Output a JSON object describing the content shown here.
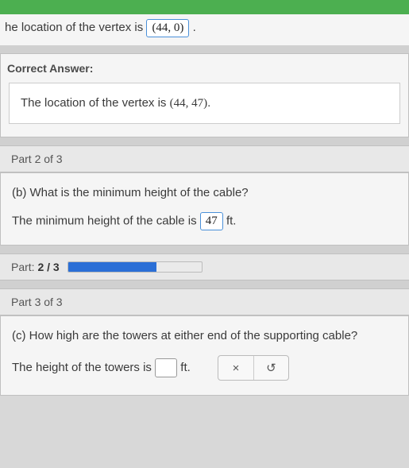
{
  "topbar": {
    "breadcrumb": ""
  },
  "part1": {
    "prefix": "he location of the vertex is",
    "user_answer": "(44, 0)",
    "suffix": ".",
    "correct_label": "Correct Answer:",
    "correct_text": "The location of the vertex is ",
    "correct_value": "(44, 47)",
    "correct_suffix": "."
  },
  "part2": {
    "header": "Part 2 of 3",
    "question": "(b) What is the minimum height of the cable?",
    "answer_prefix": "The minimum height of the cable is",
    "answer_value": "47",
    "answer_unit": "ft."
  },
  "progress": {
    "label_prefix": "Part:",
    "label_value": "2 / 3",
    "percent": 66,
    "fill_color": "#2b6fd6",
    "track_color": "#eaeaea"
  },
  "part3": {
    "header": "Part 3 of 3",
    "question": "(c) How high are the towers at either end of the supporting cable?",
    "answer_prefix": "The height of the towers is",
    "answer_value": "",
    "answer_unit": "ft."
  },
  "toolbar": {
    "close": "×",
    "undo": "↺"
  },
  "colors": {
    "green": "#4caf50",
    "box_border": "#4a90d9",
    "background": "#d8d8d8",
    "panel": "#f5f5f5"
  }
}
